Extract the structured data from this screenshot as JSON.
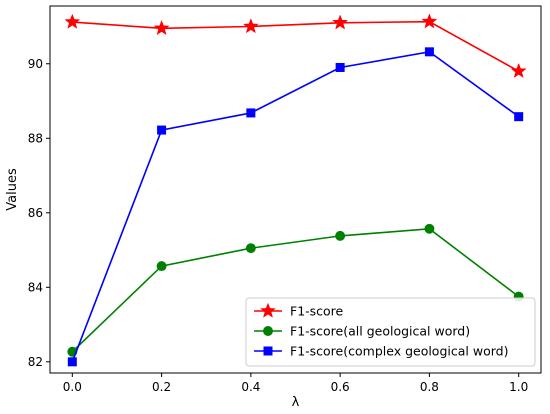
{
  "chart_data": {
    "type": "line",
    "xlabel": "λ",
    "ylabel": "Values",
    "xlim": [
      -0.05,
      1.05
    ],
    "ylim": [
      81.7,
      91.55
    ],
    "xticks": [
      0.0,
      0.2,
      0.4,
      0.6,
      0.8,
      1.0
    ],
    "xtick_labels": [
      "0.0",
      "0.2",
      "0.4",
      "0.6",
      "0.8",
      "1.0"
    ],
    "yticks": [
      82,
      84,
      86,
      88,
      90
    ],
    "ytick_labels": [
      "82",
      "84",
      "86",
      "88",
      "90"
    ],
    "grid": false,
    "legend_position": "lower-right",
    "x": [
      0.0,
      0.2,
      0.4,
      0.6,
      0.8,
      1.0
    ],
    "series": [
      {
        "name": "F1-score",
        "color": "#ff0000",
        "marker": "star",
        "values": [
          91.12,
          90.95,
          91.0,
          91.1,
          91.13,
          89.8
        ]
      },
      {
        "name": "F1-score(all geological word)",
        "color": "#008000",
        "marker": "circle",
        "values": [
          82.27,
          84.57,
          85.05,
          85.38,
          85.57,
          83.75
        ]
      },
      {
        "name": "F1-score(complex geological word)",
        "color": "#0000ff",
        "marker": "square",
        "values": [
          82.0,
          88.22,
          88.68,
          89.9,
          90.32,
          88.58
        ]
      }
    ]
  }
}
